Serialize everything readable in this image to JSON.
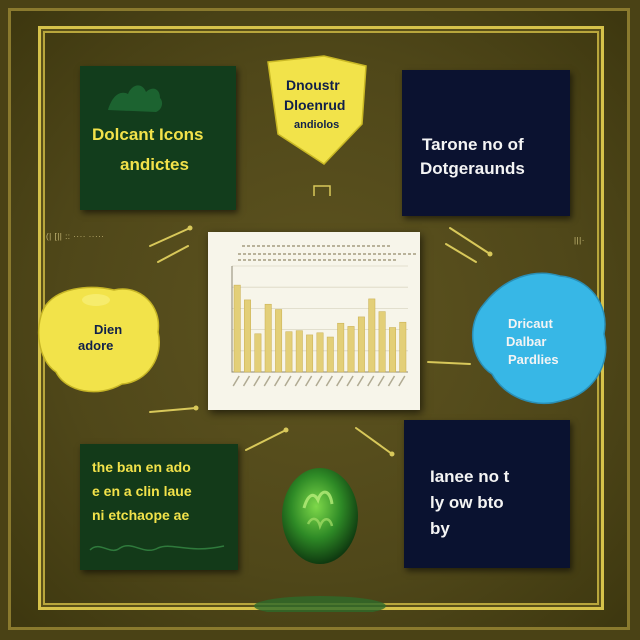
{
  "cards": {
    "top_left": {
      "line1": "Dolcant Icons",
      "line2": "andictes"
    },
    "top_center": {
      "line1": "Dnoustr",
      "line2": "Dloenrud",
      "line3": "andiolos"
    },
    "top_right": {
      "line1": "Tarone no of",
      "line2": "Dotgeraunds"
    },
    "middle_left": {
      "line1": "Dien",
      "line2": "adore"
    },
    "middle_right": {
      "line1": "Dricaut",
      "line2": "Dalbar",
      "line3": "Pardlies"
    },
    "bottom_left": {
      "line1": "the ban en ado",
      "line2": "e en a clin laue",
      "line3": "ni etchaope ae"
    },
    "bottom_right": {
      "line1": "Ianee no t",
      "line2": "ly ow bto",
      "line3": "by"
    }
  },
  "chart_data": {
    "type": "bar",
    "title": "",
    "xlabel": "",
    "ylabel": "",
    "ylim": [
      0,
      10
    ],
    "categories": [
      "1",
      "2",
      "3",
      "4",
      "5",
      "6",
      "7",
      "8",
      "9",
      "10",
      "11",
      "12",
      "13",
      "14",
      "15",
      "16",
      "17"
    ],
    "values": [
      8.2,
      6.8,
      3.6,
      6.4,
      5.9,
      3.8,
      3.9,
      3.5,
      3.7,
      3.3,
      4.6,
      4.3,
      5.2,
      6.9,
      5.7,
      4.2,
      4.7
    ]
  },
  "colors": {
    "background": "#4a4215",
    "frame_gold": "#d6c24a",
    "card_green": "#123d1c",
    "card_navy": "#0b1230",
    "accent_yellow": "#f2e24a",
    "accent_cyan": "#37b7e6",
    "bar_gold": "#e3cf78"
  }
}
